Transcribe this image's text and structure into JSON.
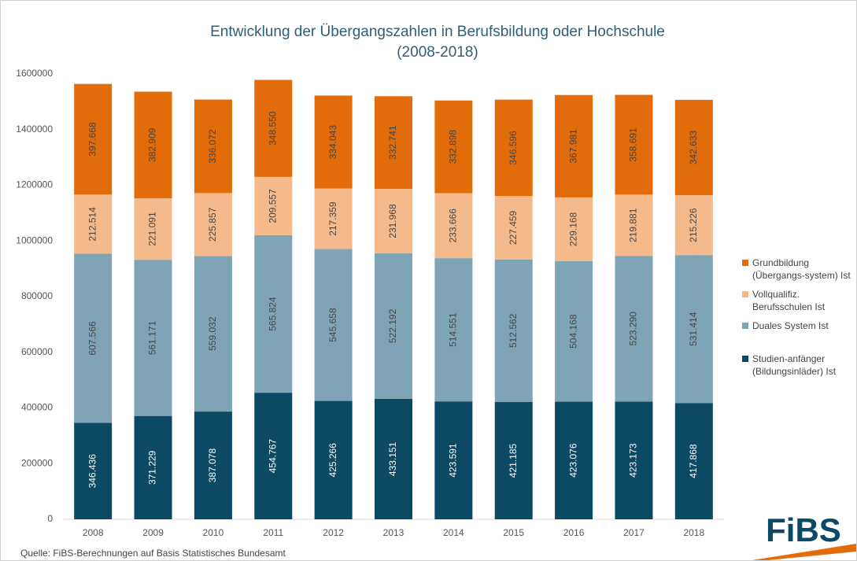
{
  "chart_data": {
    "type": "stacked_bar",
    "title": "Entwicklung der Übergangszahlen in Berufsbildung oder Hochschule",
    "subtitle": "(2008-2018)",
    "source": "Quelle: FiBS-Berechnungen auf Basis Statistisches Bundesamt",
    "logo": "FiBS",
    "categories": [
      "2008",
      "2009",
      "2010",
      "2011",
      "2012",
      "2013",
      "2014",
      "2015",
      "2016",
      "2017",
      "2018"
    ],
    "ylim": [
      0,
      1600000
    ],
    "yticks": [
      0,
      200000,
      400000,
      600000,
      800000,
      1000000,
      1200000,
      1400000,
      1600000
    ],
    "series": [
      {
        "name": "Studien-anfänger (Bildungsinläder) Ist",
        "color": "#0c4964",
        "values": [
          346436,
          371229,
          387078,
          454767,
          425266,
          433151,
          423591,
          421185,
          423076,
          423173,
          417868
        ],
        "value_labels": [
          "346.436",
          "371.229",
          "387.078",
          "454.767",
          "425.266",
          "433.151",
          "423.591",
          "421.185",
          "423.076",
          "423.173",
          "417.868"
        ]
      },
      {
        "name": "Duales System Ist",
        "color": "#7fa4b5",
        "values": [
          607566,
          561171,
          559032,
          565824,
          545658,
          522192,
          514551,
          512562,
          504168,
          523290,
          531414
        ],
        "value_labels": [
          "607.566",
          "561.171",
          "559.032",
          "565.824",
          "545.658",
          "522.192",
          "514.551",
          "512.562",
          "504.168",
          "523.290",
          "531.414"
        ]
      },
      {
        "name": "Vollqualifiz. Berufsschulen Ist",
        "color": "#f5ba8c",
        "values": [
          212514,
          221091,
          225857,
          209557,
          217359,
          231968,
          233666,
          227459,
          229168,
          219881,
          215226
        ],
        "value_labels": [
          "212.514",
          "221.091",
          "225.857",
          "209.557",
          "217.359",
          "231.968",
          "233.666",
          "227.459",
          "229.168",
          "219.881",
          "215.226"
        ]
      },
      {
        "name": "Grundbildung (Übergangs-system) Ist",
        "color": "#e36c0a",
        "values": [
          397668,
          382909,
          336072,
          348550,
          334043,
          332741,
          332898,
          346596,
          367981,
          358691,
          342633
        ],
        "value_labels": [
          "397.668",
          "382.909",
          "336.072",
          "348.550",
          "334.043",
          "332.741",
          "332.898",
          "346.596",
          "367.981",
          "358.691",
          "342.633"
        ]
      }
    ]
  }
}
